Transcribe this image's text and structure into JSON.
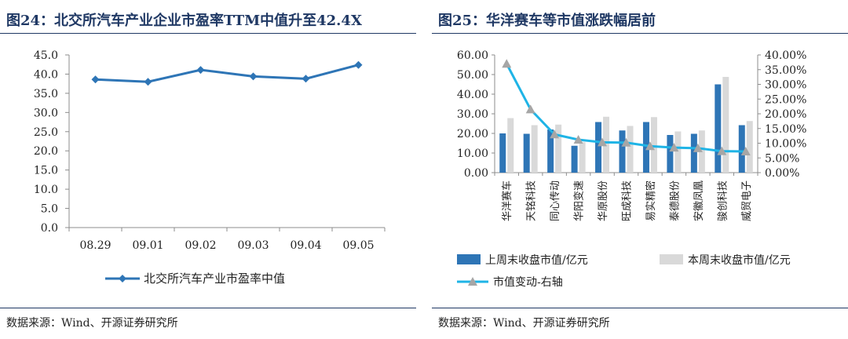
{
  "left": {
    "title": "图24：北交所汽车产业企业市盈率TTM中值升至42.4X",
    "source": "数据来源：Wind、开源证券研究所"
  },
  "right": {
    "title": "图25：华洋赛车等市值涨跌幅居前",
    "source": "数据来源：Wind、开源证券研究所"
  },
  "colors": {
    "line_blue": "#2e75b6",
    "bar_blue": "#2e75b6",
    "bar_gray": "#d9d9d9",
    "cyan": "#1fb4e6",
    "marker_gray": "#a6a6a6",
    "title_navy": "#1f3864"
  },
  "chart_data": [
    {
      "type": "line",
      "categories": [
        "08.29",
        "09.01",
        "09.02",
        "09.03",
        "09.04",
        "09.05"
      ],
      "series": [
        {
          "name": "北交所汽车产业市盈率中值",
          "values": [
            38.6,
            38.0,
            41.1,
            39.4,
            38.8,
            42.4
          ]
        }
      ],
      "ylim": [
        0,
        45
      ],
      "yticks": [
        "0.0",
        "5.0",
        "10.0",
        "15.0",
        "20.0",
        "25.0",
        "30.0",
        "35.0",
        "40.0",
        "45.0"
      ],
      "legend": "bottom"
    },
    {
      "type": "bar",
      "categories": [
        "华洋赛车",
        "天铭科技",
        "同心传动",
        "华阳变速",
        "华原股份",
        "旺成科技",
        "易实精密",
        "泰德股份",
        "安徽凤凰",
        "骏创科技",
        "威贸电子"
      ],
      "series": [
        {
          "name": "上周末收盘市值/亿元",
          "values": [
            20.0,
            19.8,
            22.0,
            13.7,
            25.8,
            21.5,
            25.8,
            19.2,
            19.8,
            45.0,
            24.2
          ],
          "axis": "left"
        },
        {
          "name": "本周末收盘市值/亿元",
          "values": [
            27.8,
            24.2,
            24.5,
            15.5,
            28.5,
            23.8,
            28.3,
            21.0,
            21.5,
            48.8,
            26.3
          ],
          "axis": "left"
        },
        {
          "name": "市值变动-右轴",
          "values": [
            37.0,
            21.5,
            13.0,
            11.2,
            10.3,
            10.2,
            9.0,
            8.5,
            8.3,
            7.3,
            7.2
          ],
          "axis": "right",
          "type": "line"
        }
      ],
      "ylim": [
        0,
        60
      ],
      "yticks": [
        "0.00",
        "10.00",
        "20.00",
        "30.00",
        "40.00",
        "50.00",
        "60.00"
      ],
      "y2lim": [
        0,
        40
      ],
      "y2ticks": [
        "0.00%",
        "5.00%",
        "10.00%",
        "15.00%",
        "20.00%",
        "25.00%",
        "30.00%",
        "35.00%",
        "40.00%"
      ],
      "legend": "bottom"
    }
  ]
}
